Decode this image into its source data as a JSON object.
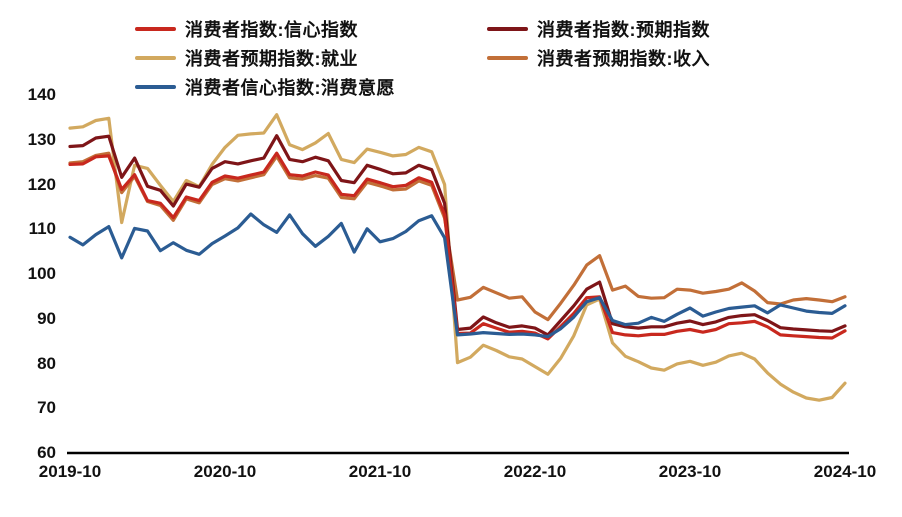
{
  "chart_data": {
    "type": "line",
    "title": "",
    "xlabel": "",
    "ylabel": "",
    "ylim": [
      60,
      140
    ],
    "y_ticks": [
      60,
      70,
      80,
      90,
      100,
      110,
      120,
      130,
      140
    ],
    "n_points": 61,
    "x_tick_labels": [
      "2019-10",
      "2020-10",
      "2021-10",
      "2022-10",
      "2023-10",
      "2024-10"
    ],
    "x_tick_indices": [
      0,
      12,
      24,
      36,
      48,
      60
    ],
    "grid": false,
    "legend_position": "top",
    "axis_color": "#000000",
    "series": [
      {
        "name": "消费者指数:信心指数",
        "color": "#c8281e",
        "values": [
          124.5,
          124.6,
          126.2,
          126.4,
          118.9,
          122.2,
          116.4,
          115.8,
          112.6,
          117.2,
          116.4,
          120.5,
          121.9,
          121.4,
          122.1,
          122.8,
          127.0,
          122.2,
          121.9,
          122.8,
          122.1,
          117.8,
          117.5,
          121.2,
          120.4,
          119.5,
          119.8,
          121.5,
          120.5,
          113.2,
          86.7,
          86.8,
          88.9,
          87.9,
          87.0,
          87.2,
          86.8,
          85.5,
          88.3,
          91.2,
          94.7,
          94.9,
          86.9,
          86.4,
          86.2,
          86.5,
          86.5,
          87.2,
          87.6,
          87.0,
          87.6,
          88.9,
          89.1,
          89.4,
          88.2,
          86.4,
          86.2,
          86.0,
          85.8,
          85.7,
          87.3
        ]
      },
      {
        "name": "消费者指数:预期指数",
        "color": "#7e1518",
        "values": [
          128.5,
          128.7,
          130.4,
          130.8,
          121.6,
          125.9,
          119.6,
          118.7,
          115.2,
          120.1,
          119.4,
          123.6,
          125.1,
          124.6,
          125.3,
          125.9,
          130.9,
          125.6,
          125.1,
          126.1,
          125.3,
          120.9,
          120.4,
          124.3,
          123.4,
          122.4,
          122.6,
          124.3,
          123.3,
          115.8,
          87.6,
          87.9,
          90.4,
          89.1,
          88.1,
          88.4,
          87.9,
          86.4,
          89.6,
          92.9,
          96.6,
          98.2,
          88.9,
          88.2,
          87.9,
          88.2,
          88.2,
          89.0,
          89.5,
          88.7,
          89.3,
          90.3,
          90.7,
          90.9,
          89.6,
          88.0,
          87.7,
          87.5,
          87.3,
          87.2,
          88.4
        ]
      },
      {
        "name": "消费者预期指数:就业",
        "color": "#d2a95f",
        "values": [
          132.6,
          132.9,
          134.3,
          134.8,
          111.5,
          124.3,
          123.6,
          119.8,
          116.2,
          120.9,
          119.5,
          124.5,
          128.3,
          131.0,
          131.3,
          131.5,
          135.6,
          128.9,
          127.8,
          129.3,
          131.4,
          125.6,
          124.9,
          127.9,
          127.2,
          126.4,
          126.7,
          128.3,
          127.3,
          120.0,
          80.2,
          81.4,
          84.1,
          82.9,
          81.5,
          81.0,
          79.3,
          77.6,
          81.2,
          86.2,
          93.1,
          94.4,
          84.6,
          81.6,
          80.4,
          79.0,
          78.5,
          79.9,
          80.5,
          79.6,
          80.3,
          81.7,
          82.3,
          81.0,
          77.9,
          75.4,
          73.6,
          72.3,
          71.8,
          72.4,
          75.6
        ]
      },
      {
        "name": "消费者预期指数:收入",
        "color": "#c26f38",
        "values": [
          124.8,
          125.1,
          126.5,
          127.0,
          118.2,
          121.8,
          116.2,
          115.3,
          112.0,
          116.8,
          115.9,
          120.0,
          121.3,
          120.8,
          121.5,
          122.2,
          126.3,
          121.5,
          121.2,
          122.0,
          121.4,
          117.1,
          116.8,
          120.5,
          119.7,
          118.8,
          119.0,
          120.8,
          119.8,
          112.5,
          94.2,
          94.8,
          97.0,
          95.8,
          94.6,
          94.9,
          91.5,
          89.8,
          93.5,
          97.5,
          102.0,
          104.1,
          96.4,
          97.3,
          95.0,
          94.6,
          94.7,
          96.6,
          96.4,
          95.7,
          96.1,
          96.6,
          98.0,
          96.2,
          93.6,
          93.3,
          94.2,
          94.5,
          94.2,
          93.8,
          94.9
        ]
      },
      {
        "name": "消费者信心指数:消费意愿",
        "color": "#2b5c93",
        "values": [
          108.2,
          106.5,
          108.8,
          110.6,
          103.6,
          110.2,
          109.6,
          105.2,
          107.0,
          105.3,
          104.4,
          106.8,
          108.5,
          110.3,
          113.4,
          111.0,
          109.3,
          113.2,
          109.0,
          106.2,
          108.4,
          111.3,
          104.9,
          110.1,
          107.2,
          107.9,
          109.5,
          111.9,
          113.0,
          108.1,
          86.4,
          86.6,
          86.9,
          86.7,
          86.5,
          86.6,
          86.4,
          86.0,
          87.8,
          90.4,
          93.8,
          94.7,
          89.6,
          88.7,
          89.0,
          90.3,
          89.4,
          91.0,
          92.4,
          90.6,
          91.5,
          92.3,
          92.6,
          92.9,
          91.3,
          93.1,
          92.4,
          91.7,
          91.4,
          91.2,
          92.9
        ]
      }
    ],
    "legend_order": [
      0,
      1,
      2,
      3,
      4
    ],
    "draw_order": [
      2,
      3,
      1,
      0,
      4
    ]
  }
}
